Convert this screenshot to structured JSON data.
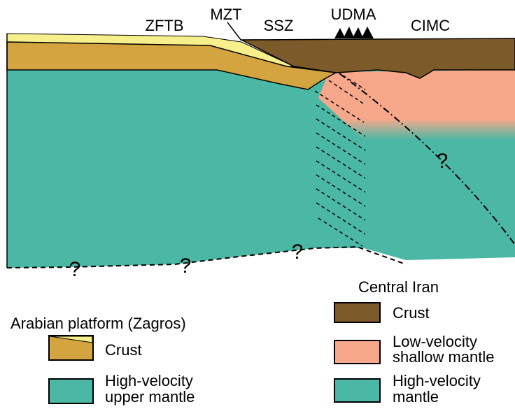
{
  "section_labels": [
    "ZFTB",
    "MZT",
    "SSZ",
    "UDMA",
    "CIMC"
  ],
  "question_marks": [
    "?",
    "?",
    "?",
    "?"
  ],
  "legend_right": {
    "title": "Central Iran",
    "items": [
      {
        "lines": [
          "Crust"
        ]
      },
      {
        "lines": [
          "Low-velocity",
          "shallow mantle"
        ]
      },
      {
        "lines": [
          "High-velocity",
          "mantle"
        ]
      }
    ]
  },
  "legend_left": {
    "title": "Arabian platform (Zagros)",
    "items": [
      {
        "lines": [
          "Crust"
        ]
      },
      {
        "lines": [
          "High-velocity",
          "upper mantle"
        ]
      }
    ]
  }
}
